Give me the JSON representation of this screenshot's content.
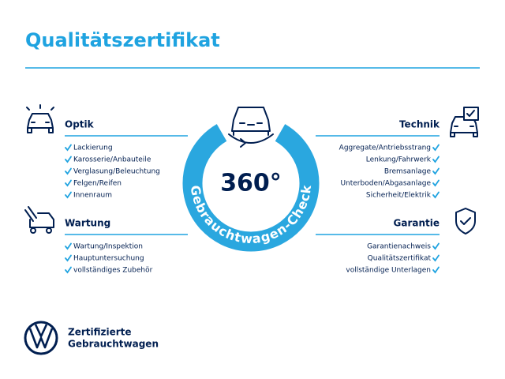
{
  "header": {
    "title": "Qualitätszertifikat"
  },
  "center": {
    "label": "360°",
    "ring_text": "Gebrauchtwagen-Check"
  },
  "sections": [
    {
      "title": "Optik",
      "items": [
        "Lackierung",
        "Karosserie/Anbauteile",
        "Verglasung/Beleuchtung",
        "Felgen/Reifen",
        "Innenraum"
      ]
    },
    {
      "title": "Wartung",
      "items": [
        "Wartung/Inspektion",
        "Hauptuntersuchung",
        "vollständiges Zubehör"
      ]
    },
    {
      "title": "Technik",
      "items": [
        "Aggregate/Antriebsstrang",
        "Lenkung/Fahrwerk",
        "Bremsanlage",
        "Unterboden/Abgasanlage",
        "Sicherheit/Elektrik"
      ]
    },
    {
      "title": "Garantie",
      "items": [
        "Garantienachweis",
        "Qualitätszertifikat",
        "vollständige Unterlagen"
      ]
    }
  ],
  "footer": {
    "line1": "Zertifizierte",
    "line2": "Gebrauchtwagen"
  }
}
